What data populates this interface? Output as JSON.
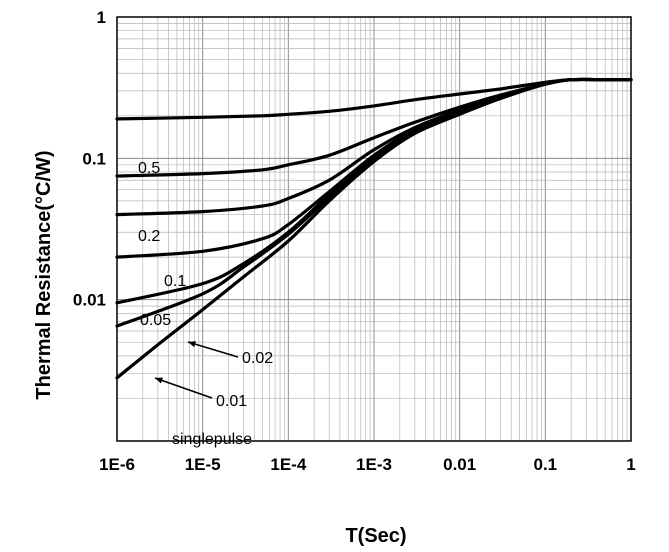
{
  "chart_data": {
    "type": "line",
    "xscale": "log",
    "yscale": "log",
    "xlim": [
      1e-06,
      1
    ],
    "ylim": [
      0.001,
      1
    ],
    "xlabel": "T(Sec)",
    "ylabel": "Thermal Resistance(°C/W)",
    "x_ticks": [
      "1E-6",
      "1E-5",
      "1E-4",
      "1E-3",
      "0.01",
      "0.1",
      "1"
    ],
    "y_ticks": [
      "1",
      "0.1",
      "0.01"
    ],
    "grid": true,
    "series": [
      {
        "name": "0.5",
        "x": [
          1e-06,
          1e-05,
          5e-05,
          0.0001,
          0.0003,
          0.001,
          0.003,
          0.01,
          0.03,
          0.1,
          0.2,
          0.5,
          1
        ],
        "y": [
          0.19,
          0.195,
          0.2,
          0.205,
          0.215,
          0.235,
          0.26,
          0.285,
          0.31,
          0.345,
          0.36,
          0.36,
          0.36
        ]
      },
      {
        "name": "0.2",
        "x": [
          1e-06,
          1e-05,
          5e-05,
          0.0001,
          0.0003,
          0.001,
          0.003,
          0.01,
          0.03,
          0.1,
          0.2,
          0.5,
          1
        ],
        "y": [
          0.075,
          0.078,
          0.083,
          0.09,
          0.105,
          0.14,
          0.18,
          0.23,
          0.28,
          0.335,
          0.36,
          0.36,
          0.36
        ]
      },
      {
        "name": "0.1",
        "x": [
          1e-06,
          1e-05,
          5e-05,
          0.0001,
          0.0003,
          0.001,
          0.003,
          0.01,
          0.03,
          0.1,
          0.2,
          0.5,
          1
        ],
        "y": [
          0.04,
          0.042,
          0.046,
          0.052,
          0.07,
          0.115,
          0.165,
          0.22,
          0.275,
          0.335,
          0.36,
          0.36,
          0.36
        ]
      },
      {
        "name": "0.05",
        "x": [
          1e-06,
          1e-05,
          5e-05,
          0.0001,
          0.0003,
          0.001,
          0.003,
          0.01,
          0.03,
          0.1,
          0.2,
          0.5,
          1
        ],
        "y": [
          0.02,
          0.022,
          0.027,
          0.034,
          0.058,
          0.105,
          0.16,
          0.215,
          0.27,
          0.335,
          0.36,
          0.36,
          0.36
        ]
      },
      {
        "name": "0.02",
        "x": [
          1e-06,
          1e-05,
          3e-05,
          0.0001,
          0.0003,
          0.001,
          0.003,
          0.01,
          0.03,
          0.1,
          0.2,
          0.5,
          1
        ],
        "y": [
          0.0095,
          0.013,
          0.018,
          0.03,
          0.055,
          0.1,
          0.155,
          0.21,
          0.27,
          0.335,
          0.36,
          0.36,
          0.36
        ]
      },
      {
        "name": "0.01",
        "x": [
          1e-06,
          1e-05,
          3e-05,
          0.0001,
          0.0003,
          0.001,
          0.003,
          0.01,
          0.03,
          0.1,
          0.2,
          0.5,
          1
        ],
        "y": [
          0.0065,
          0.011,
          0.017,
          0.029,
          0.053,
          0.098,
          0.152,
          0.208,
          0.268,
          0.335,
          0.36,
          0.36,
          0.36
        ]
      },
      {
        "name": "single pulse",
        "x": [
          1e-06,
          3e-06,
          1e-05,
          3e-05,
          0.0001,
          0.0003,
          0.001,
          0.003,
          0.01,
          0.03,
          0.1,
          0.2,
          0.5,
          1
        ],
        "y": [
          0.0028,
          0.0048,
          0.0085,
          0.0145,
          0.026,
          0.05,
          0.095,
          0.15,
          0.205,
          0.265,
          0.335,
          0.36,
          0.36,
          0.36
        ]
      }
    ],
    "annotations": [
      "0.5",
      "0.2",
      "0.1",
      "0.05",
      "0.02",
      "0.01",
      "singlepulse"
    ]
  }
}
